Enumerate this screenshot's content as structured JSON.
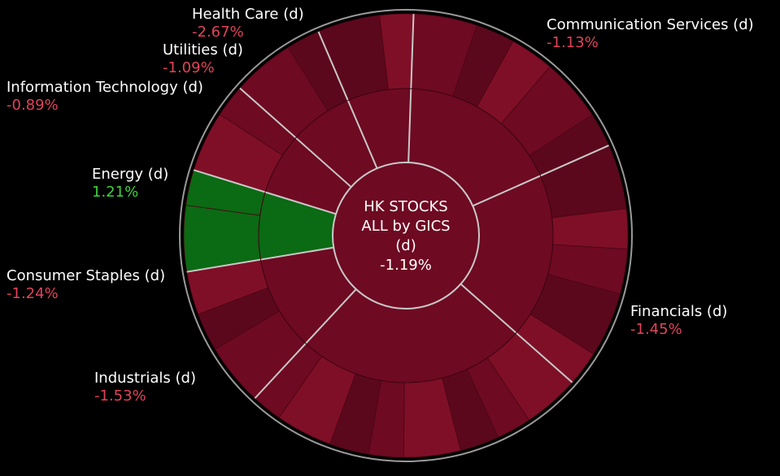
{
  "chart_data": {
    "type": "sunburst",
    "center": {
      "title_lines": [
        "HK STOCKS",
        "ALL by GICS",
        "(d)"
      ],
      "value": "-1.19%"
    },
    "colors": {
      "negative": "#6e0a22",
      "negative_light": "#7f0f27",
      "negative_dark": "#5c081c",
      "positive": "#0b6a14",
      "positive_text": "#3fd13f",
      "negative_text": "#e0435a",
      "separator": "#c8c8c8"
    },
    "sectors": [
      {
        "name": "Communication Services (d)",
        "change": "-1.13%",
        "value": -1.13,
        "weight": 17.8
      },
      {
        "name": "Financials (d)",
        "change": "-1.45%",
        "value": -1.45,
        "weight": 18.2
      },
      {
        "name": "Industrials (d)",
        "change": "-1.53%",
        "value": -1.53,
        "weight": 25.4
      },
      {
        "name": "Consumer Staples (d)",
        "change": "-1.24%",
        "value": -1.24,
        "weight": 10.5
      },
      {
        "name": "Energy (d)",
        "change": "1.21%",
        "value": 1.21,
        "weight": 7.4
      },
      {
        "name": "Information Technology (d)",
        "change": "-0.89%",
        "value": -0.89,
        "weight": 6.8
      },
      {
        "name": "Utilities (d)",
        "change": "-1.09%",
        "value": -1.09,
        "weight": 7.0
      },
      {
        "name": "Health Care (d)",
        "change": "-2.67%",
        "value": -2.67,
        "weight": 7.0
      }
    ]
  }
}
